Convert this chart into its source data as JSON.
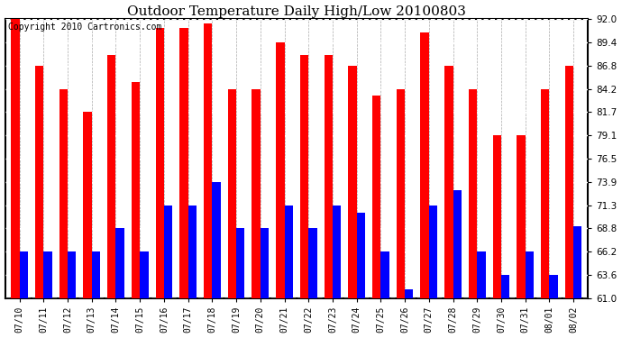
{
  "title": "Outdoor Temperature Daily High/Low 20100803",
  "copyright": "Copyright 2010 Cartronics.com",
  "dates": [
    "07/10",
    "07/11",
    "07/12",
    "07/13",
    "07/14",
    "07/15",
    "07/16",
    "07/17",
    "07/18",
    "07/19",
    "07/20",
    "07/21",
    "07/22",
    "07/23",
    "07/24",
    "07/25",
    "07/26",
    "07/27",
    "07/28",
    "07/29",
    "07/30",
    "07/31",
    "08/01",
    "08/02"
  ],
  "highs": [
    92.0,
    86.8,
    84.2,
    81.7,
    88.0,
    85.0,
    91.0,
    91.0,
    91.5,
    84.2,
    84.2,
    89.4,
    88.0,
    88.0,
    86.8,
    83.5,
    84.2,
    90.5,
    86.8,
    84.2,
    79.1,
    79.1,
    84.2,
    86.8
  ],
  "lows": [
    66.2,
    66.2,
    66.2,
    66.2,
    68.8,
    66.2,
    71.3,
    71.3,
    73.9,
    68.8,
    68.8,
    71.3,
    68.8,
    71.3,
    70.5,
    66.2,
    62.0,
    71.3,
    73.0,
    66.2,
    63.6,
    66.2,
    63.6,
    69.0
  ],
  "high_color": "#ff0000",
  "low_color": "#0000ff",
  "bg_color": "#ffffff",
  "plot_bg_color": "#ffffff",
  "yticks": [
    61.0,
    63.6,
    66.2,
    68.8,
    71.3,
    73.9,
    76.5,
    79.1,
    81.7,
    84.2,
    86.8,
    89.4,
    92.0
  ],
  "ymin": 61.0,
  "ymax": 92.0,
  "title_fontsize": 11,
  "copyright_fontsize": 7
}
